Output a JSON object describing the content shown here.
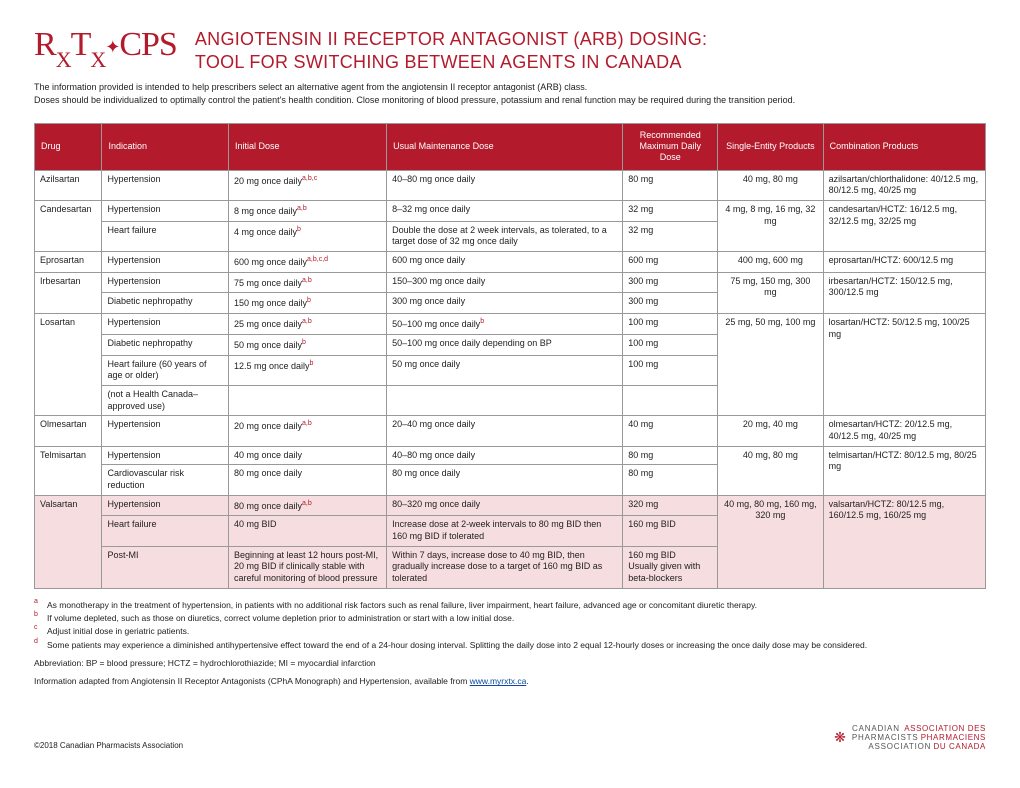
{
  "logo": {
    "primary": "R",
    "sub1": "X",
    "mid": "T",
    "sub2": "X",
    "cps": "CPS"
  },
  "title_line1": "ANGIOTENSIN II RECEPTOR ANTAGONIST (ARB) DOSING:",
  "title_line2": "TOOL FOR SWITCHING BETWEEN AGENTS IN CANADA",
  "intro_p1": "The information provided is intended to help prescribers select an alternative agent from the angiotensin II receptor antagonist (ARB) class.",
  "intro_p2": "Doses should be individualized to optimally control the patient's health condition. Close monitoring of blood pressure, potassium and renal function may be required during the transition period.",
  "columns": [
    "Drug",
    "Indication",
    "Initial Dose",
    "Usual Maintenance Dose",
    "Recommended Maximum Daily Dose",
    "Single-Entity Products",
    "Combination Products"
  ],
  "rows": [
    {
      "drug": "Azilsartan",
      "ind": "Hypertension",
      "init": "20 mg once daily",
      "init_sup": "a,b,c",
      "maint": "40–80 mg once daily",
      "max": "80 mg",
      "single": "40 mg, 80 mg",
      "combo": "azilsartan/chlorthalidone: 40/12.5 mg, 80/12.5 mg, 40/25 mg",
      "drug_rs": 1,
      "single_rs": 1,
      "combo_rs": 1
    },
    {
      "drug": "Candesartan",
      "ind": "Hypertension",
      "init": "8 mg once daily",
      "init_sup": "a,b",
      "maint": "8–32 mg once daily",
      "max": "32 mg",
      "single": "4 mg, 8 mg, 16 mg, 32 mg",
      "combo": "candesartan/HCTZ: 16/12.5 mg, 32/12.5 mg, 32/25 mg",
      "drug_rs": 2,
      "single_rs": 2,
      "combo_rs": 2
    },
    {
      "ind": "Heart failure",
      "init": "4 mg once daily",
      "init_sup": "b",
      "maint": "Double the dose at 2 week intervals, as tolerated, to a target dose of 32 mg once daily",
      "max": "32 mg"
    },
    {
      "drug": "Eprosartan",
      "ind": "Hypertension",
      "init": "600 mg once daily",
      "init_sup": "a,b,c,d",
      "maint": "600 mg once daily",
      "max": "600 mg",
      "single": "400 mg, 600 mg",
      "combo": "eprosartan/HCTZ: 600/12.5 mg",
      "drug_rs": 1,
      "single_rs": 1,
      "combo_rs": 1
    },
    {
      "drug": "Irbesartan",
      "ind": "Hypertension",
      "init": "75 mg once daily",
      "init_sup": "a,b",
      "maint": "150–300 mg once daily",
      "max": "300 mg",
      "single": "75 mg, 150 mg, 300 mg",
      "combo": "irbesartan/HCTZ: 150/12.5 mg, 300/12.5 mg",
      "drug_rs": 2,
      "single_rs": 2,
      "combo_rs": 2
    },
    {
      "ind": "Diabetic nephropathy",
      "init": "150 mg once daily",
      "init_sup": "b",
      "maint": "300 mg once daily",
      "max": "300 mg"
    },
    {
      "drug": "Losartan",
      "ind": "Hypertension",
      "init": "25 mg once daily",
      "init_sup": "a,b",
      "maint": "50–100 mg once daily",
      "maint_sup": "b",
      "max": "100 mg",
      "single": "25 mg, 50 mg, 100 mg",
      "combo": "losartan/HCTZ: 50/12.5 mg, 100/25 mg",
      "drug_rs": 4,
      "single_rs": 4,
      "combo_rs": 4
    },
    {
      "ind": "Diabetic nephropathy",
      "init": "50 mg once daily",
      "init_sup": "b",
      "maint": "50–100 mg once daily depending on BP",
      "max": "100 mg"
    },
    {
      "ind": "Heart failure (60 years of age or older)",
      "init": "12.5 mg once daily",
      "init_sup": "b",
      "maint": "50 mg once daily",
      "max": "100 mg"
    },
    {
      "ind": "(not a Health Canada–approved use)",
      "init": "",
      "maint": "",
      "max": ""
    },
    {
      "drug": "Olmesartan",
      "ind": "Hypertension",
      "init": "20 mg once daily",
      "init_sup": "a,b",
      "maint": "20–40 mg once daily",
      "max": "40 mg",
      "single": "20 mg, 40 mg",
      "combo": "olmesartan/HCTZ: 20/12.5 mg, 40/12.5 mg, 40/25 mg",
      "drug_rs": 1,
      "single_rs": 1,
      "combo_rs": 1
    },
    {
      "drug": "Telmisartan",
      "ind": "Hypertension",
      "init": "40 mg once daily",
      "maint": "40–80 mg once daily",
      "max": "80 mg",
      "single": "40 mg, 80 mg",
      "combo": "telmisartan/HCTZ: 80/12.5 mg, 80/25 mg",
      "drug_rs": 2,
      "single_rs": 2,
      "combo_rs": 2
    },
    {
      "ind": "Cardiovascular risk reduction",
      "init": "80 mg once daily",
      "maint": "80 mg once daily",
      "max": "80 mg"
    },
    {
      "hl": true,
      "drug": "Valsartan",
      "ind": "Hypertension",
      "init": "80 mg once daily",
      "init_sup": "a,b",
      "maint": "80–320 mg once daily",
      "max": "320 mg",
      "single": "40 mg, 80 mg, 160 mg, 320 mg",
      "combo": "valsartan/HCTZ: 80/12.5 mg, 160/12.5 mg, 160/25 mg",
      "drug_rs": 3,
      "single_rs": 3,
      "combo_rs": 3
    },
    {
      "hl": true,
      "ind": "Heart failure",
      "init": "40 mg BID",
      "maint": "Increase dose at 2-week intervals to 80 mg BID then 160 mg BID if tolerated",
      "max": "160 mg BID"
    },
    {
      "hl": true,
      "ind": "Post-MI",
      "init": "Beginning at least 12 hours post-MI, 20 mg BID if clinically stable with careful monitoring of blood pressure",
      "maint": "Within 7 days, increase dose to 40 mg BID, then gradually increase dose to a target of 160 mg BID as tolerated",
      "max": "160 mg BID\nUsually given with beta-blockers"
    }
  ],
  "footnotes": [
    {
      "m": "a",
      "t": "As monotherapy in the treatment of hypertension, in patients with no additional risk factors such as renal failure, liver impairment, heart failure, advanced age or concomitant diuretic therapy."
    },
    {
      "m": "b",
      "t": "If volume depleted, such as those on diuretics, correct volume depletion prior to administration or start with a low initial dose."
    },
    {
      "m": "c",
      "t": "Adjust initial dose in geriatric patients."
    },
    {
      "m": "d",
      "t": "Some patients may experience a diminished antihypertensive effect toward the end of a 24-hour dosing interval. Splitting the daily dose into 2 equal 12-hourly doses or increasing the once daily dose may be considered."
    }
  ],
  "abbr": "Abbreviation: BP = blood pressure; HCTZ = hydrochlorothiazide; MI = myocardial infarction",
  "adapted_pre": "Information adapted from Angiotensin II Receptor Antagonists (CPhA Monograph) and Hypertension, available from ",
  "adapted_link": "www.myrxtx.ca",
  "copyright": "©2018 Canadian Pharmacists Association",
  "cpha": {
    "en1": "CANADIAN",
    "en2": "PHARMACISTS",
    "en3": "ASSOCIATION",
    "fr1": "ASSOCIATION DES",
    "fr2": "PHARMACIENS",
    "fr3": "DU CANADA"
  }
}
